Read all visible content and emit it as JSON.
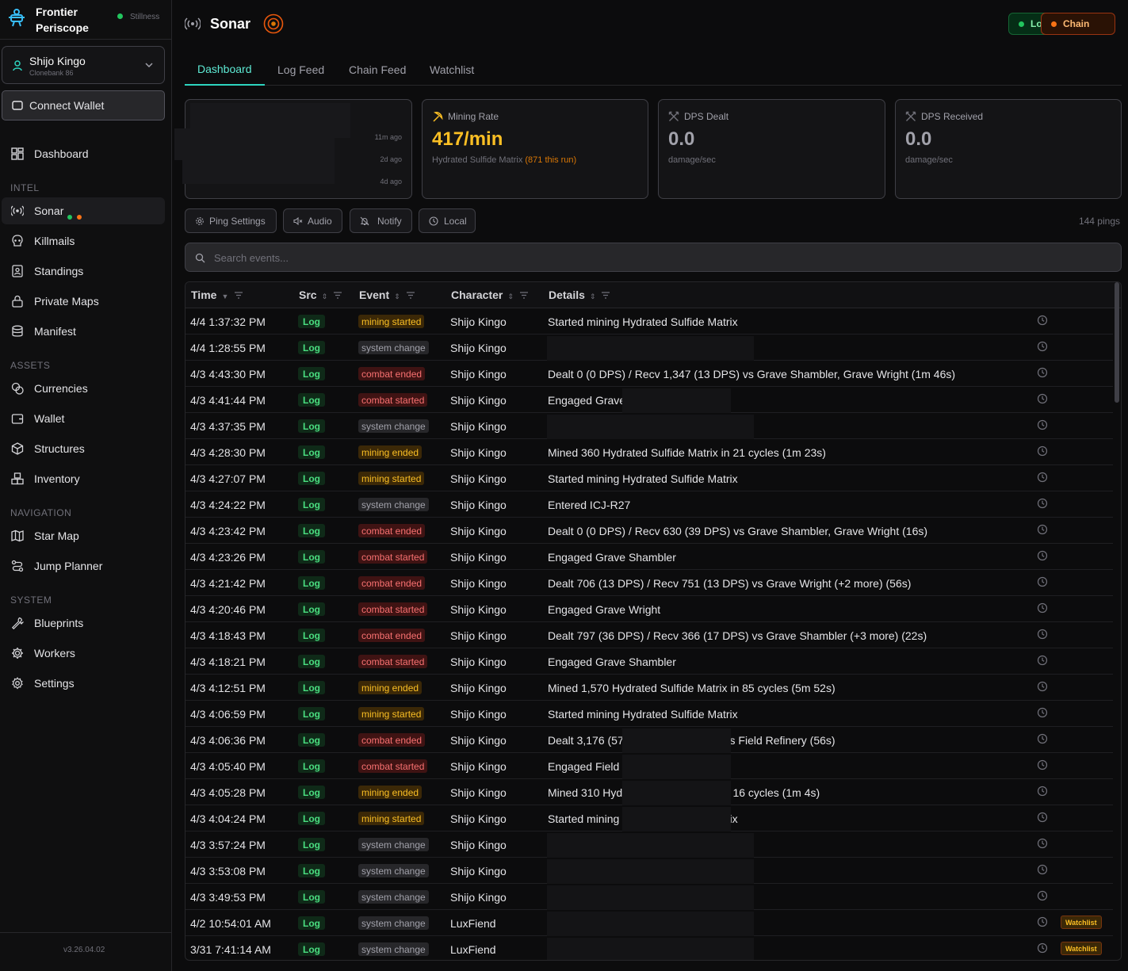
{
  "brand": {
    "name": "Frontier\nPeriscope",
    "status": "Stillness"
  },
  "character": {
    "name": "Shijo Kingo",
    "sub": "Clonebank 86"
  },
  "wallet_label": "Connect Wallet",
  "nav": {
    "dashboard": "Dashboard",
    "intel_header": "INTEL",
    "sonar": "Sonar",
    "killmails": "Killmails",
    "standings": "Standings",
    "private_maps": "Private Maps",
    "manifest": "Manifest",
    "assets_header": "ASSETS",
    "currencies": "Currencies",
    "wallet": "Wallet",
    "structures": "Structures",
    "inventory": "Inventory",
    "navigation_header": "NAVIGATION",
    "star_map": "Star Map",
    "jump_planner": "Jump Planner",
    "system_header": "SYSTEM",
    "blueprints": "Blueprints",
    "workers": "Workers",
    "settings": "Settings"
  },
  "version": "v3.26.04.02",
  "header": {
    "title": "Sonar",
    "log_pill": "Log",
    "chain_pill": "Chain"
  },
  "tabs": [
    "Dashboard",
    "Log Feed",
    "Chain Feed",
    "Watchlist"
  ],
  "cards": {
    "recent": {
      "ago": [
        "11m ago",
        "2d ago",
        "4d ago"
      ]
    },
    "mining": {
      "label": "Mining Rate",
      "value": "417/min",
      "sub_prefix": "Hydrated Sulfide Matrix",
      "sub_extra": "(871 this run)"
    },
    "dps_dealt": {
      "label": "DPS Dealt",
      "value": "0.0",
      "sub": "damage/sec"
    },
    "dps_received": {
      "label": "DPS Received",
      "value": "0.0",
      "sub": "damage/sec"
    }
  },
  "controls": {
    "ping": "Ping Settings",
    "audio": "Audio",
    "notify": "Notify",
    "local": "Local",
    "pings": "144 pings"
  },
  "search": {
    "placeholder": "Search events..."
  },
  "table": {
    "columns": {
      "time": "Time",
      "src": "Src",
      "event": "Event",
      "character": "Character",
      "details": "Details"
    },
    "rows": [
      {
        "time": "4/4 1:37:32 PM",
        "src": "Log",
        "event": "mining started",
        "type": "mining",
        "character": "Shijo Kingo",
        "details": "Started mining Hydrated Sulfide Matrix",
        "watch": ""
      },
      {
        "time": "4/4 1:28:55 PM",
        "src": "Log",
        "event": "system change",
        "type": "system",
        "character": "Shijo Kingo",
        "details": "",
        "watch": ""
      },
      {
        "time": "4/3 4:43:30 PM",
        "src": "Log",
        "event": "combat ended",
        "type": "combat",
        "character": "Shijo Kingo",
        "details": "Dealt 0 (0 DPS) / Recv 1,347 (13 DPS) vs Grave Shambler, Grave Wright (1m 46s)",
        "watch": ""
      },
      {
        "time": "4/3 4:41:44 PM",
        "src": "Log",
        "event": "combat started",
        "type": "combat",
        "character": "Shijo Kingo",
        "details": "Engaged Grave",
        "watch": ""
      },
      {
        "time": "4/3 4:37:35 PM",
        "src": "Log",
        "event": "system change",
        "type": "system",
        "character": "Shijo Kingo",
        "details": "",
        "watch": ""
      },
      {
        "time": "4/3 4:28:30 PM",
        "src": "Log",
        "event": "mining ended",
        "type": "mining",
        "character": "Shijo Kingo",
        "details": "Mined 360 Hydrated Sulfide Matrix in 21 cycles (1m 23s)",
        "watch": ""
      },
      {
        "time": "4/3 4:27:07 PM",
        "src": "Log",
        "event": "mining started",
        "type": "mining",
        "character": "Shijo Kingo",
        "details": "Started mining Hydrated Sulfide Matrix",
        "watch": ""
      },
      {
        "time": "4/3 4:24:22 PM",
        "src": "Log",
        "event": "system change",
        "type": "system",
        "character": "Shijo Kingo",
        "details": "Entered ICJ-R27",
        "watch": ""
      },
      {
        "time": "4/3 4:23:42 PM",
        "src": "Log",
        "event": "combat ended",
        "type": "combat",
        "character": "Shijo Kingo",
        "details": "Dealt 0 (0 DPS) / Recv 630 (39 DPS) vs Grave Shambler, Grave Wright (16s)",
        "watch": ""
      },
      {
        "time": "4/3 4:23:26 PM",
        "src": "Log",
        "event": "combat started",
        "type": "combat",
        "character": "Shijo Kingo",
        "details": "Engaged Grave Shambler",
        "watch": ""
      },
      {
        "time": "4/3 4:21:42 PM",
        "src": "Log",
        "event": "combat ended",
        "type": "combat",
        "character": "Shijo Kingo",
        "details": "Dealt 706 (13 DPS) / Recv 751 (13 DPS) vs Grave Wright (+2 more) (56s)",
        "watch": ""
      },
      {
        "time": "4/3 4:20:46 PM",
        "src": "Log",
        "event": "combat started",
        "type": "combat",
        "character": "Shijo Kingo",
        "details": "Engaged Grave Wright",
        "watch": ""
      },
      {
        "time": "4/3 4:18:43 PM",
        "src": "Log",
        "event": "combat ended",
        "type": "combat",
        "character": "Shijo Kingo",
        "details": "Dealt 797 (36 DPS) / Recv 366 (17 DPS) vs Grave Shambler (+3 more) (22s)",
        "watch": ""
      },
      {
        "time": "4/3 4:18:21 PM",
        "src": "Log",
        "event": "combat started",
        "type": "combat",
        "character": "Shijo Kingo",
        "details": "Engaged Grave Shambler",
        "watch": ""
      },
      {
        "time": "4/3 4:12:51 PM",
        "src": "Log",
        "event": "mining ended",
        "type": "mining",
        "character": "Shijo Kingo",
        "details": "Mined 1,570 Hydrated Sulfide Matrix in 85 cycles (5m 52s)",
        "watch": ""
      },
      {
        "time": "4/3 4:06:59 PM",
        "src": "Log",
        "event": "mining started",
        "type": "mining",
        "character": "Shijo Kingo",
        "details": "Started mining Hydrated Sulfide Matrix",
        "watch": ""
      },
      {
        "time": "4/3 4:06:36 PM",
        "src": "Log",
        "event": "combat ended",
        "type": "combat",
        "character": "Shijo Kingo",
        "details": "Dealt 3,176 (57 DPS) / Recv (DPS) vs Field Refinery (56s)",
        "watch": ""
      },
      {
        "time": "4/3 4:05:40 PM",
        "src": "Log",
        "event": "combat started",
        "type": "combat",
        "character": "Shijo Kingo",
        "details": "Engaged Field Refinery",
        "watch": ""
      },
      {
        "time": "4/3 4:05:28 PM",
        "src": "Log",
        "event": "mining ended",
        "type": "mining",
        "character": "Shijo Kingo",
        "details": "Mined 310 Hydrated Sulfide Matrix in 16 cycles (1m 4s)",
        "watch": ""
      },
      {
        "time": "4/3 4:04:24 PM",
        "src": "Log",
        "event": "mining started",
        "type": "mining",
        "character": "Shijo Kingo",
        "details": "Started mining Hydrated Sulfide Matrix",
        "watch": ""
      },
      {
        "time": "4/3 3:57:24 PM",
        "src": "Log",
        "event": "system change",
        "type": "system",
        "character": "Shijo Kingo",
        "details": "",
        "watch": ""
      },
      {
        "time": "4/3 3:53:08 PM",
        "src": "Log",
        "event": "system change",
        "type": "system",
        "character": "Shijo Kingo",
        "details": "",
        "watch": ""
      },
      {
        "time": "4/3 3:49:53 PM",
        "src": "Log",
        "event": "system change",
        "type": "system",
        "character": "Shijo Kingo",
        "details": "",
        "watch": ""
      },
      {
        "time": "4/2 10:54:01 AM",
        "src": "Log",
        "event": "system change",
        "type": "system",
        "character": "LuxFiend",
        "details": "",
        "watch": "Watchlist"
      },
      {
        "time": "3/31 7:41:14 AM",
        "src": "Log",
        "event": "system change",
        "type": "system",
        "character": "LuxFiend",
        "details": "",
        "watch": "Watchlist"
      }
    ]
  },
  "colors": {
    "accent": "#2dd4bf",
    "mining": "#fbbf24",
    "combat": "#f87171",
    "log_green": "#4ade80"
  }
}
